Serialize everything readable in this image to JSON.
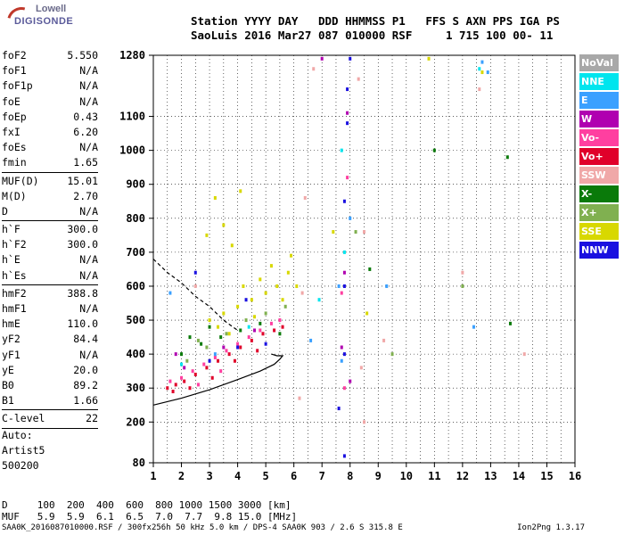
{
  "logo": {
    "top": "Lowell",
    "bottom": "DIGISONDE"
  },
  "header": {
    "line1": "Station YYYY DAY   DDD HHMMSS P1   FFS S AXN PPS IGA PS",
    "line2": "SaoLuis 2016 Mar27 087 010000 RSF     1 715 100 00- 11"
  },
  "params": [
    {
      "k": "foF2",
      "v": "5.550"
    },
    {
      "k": "foF1",
      "v": "N/A"
    },
    {
      "k": "foF1p",
      "v": "N/A"
    },
    {
      "k": "foE",
      "v": "N/A"
    },
    {
      "k": "foEp",
      "v": "0.43"
    },
    {
      "k": "fxI",
      "v": "6.20"
    },
    {
      "k": "foEs",
      "v": "N/A"
    },
    {
      "k": "fmin",
      "v": "1.65"
    },
    {
      "sep": true
    },
    {
      "k": "MUF(D)",
      "v": "15.01"
    },
    {
      "k": "M(D)",
      "v": "2.70"
    },
    {
      "k": "D",
      "v": "N/A"
    },
    {
      "sep": true
    },
    {
      "k": "h`F",
      "v": "300.0"
    },
    {
      "k": "h`F2",
      "v": "300.0"
    },
    {
      "k": "h`E",
      "v": "N/A"
    },
    {
      "k": "h`Es",
      "v": "N/A"
    },
    {
      "sep": true
    },
    {
      "k": "hmF2",
      "v": "388.8"
    },
    {
      "k": "hmF1",
      "v": "N/A"
    },
    {
      "k": "hmE",
      "v": "110.0"
    },
    {
      "k": "yF2",
      "v": "84.4"
    },
    {
      "k": "yF1",
      "v": "N/A"
    },
    {
      "k": "yE",
      "v": "20.0"
    },
    {
      "k": "B0",
      "v": "89.2"
    },
    {
      "k": "B1",
      "v": "1.66"
    },
    {
      "sep": true
    },
    {
      "k": "C-level",
      "v": "22"
    },
    {
      "sep": true
    }
  ],
  "auto": [
    "Auto:",
    "Artist5",
    "500200"
  ],
  "legend": [
    {
      "label": "NoVal",
      "color": "#a8a8a8"
    },
    {
      "label": "NNE",
      "color": "#00e5ee"
    },
    {
      "label": "E",
      "color": "#3aa0ff"
    },
    {
      "label": "W",
      "color": "#b000b0"
    },
    {
      "label": "Vo-",
      "color": "#ff3fa0"
    },
    {
      "label": "Vo+",
      "color": "#e0002a"
    },
    {
      "label": "SSW",
      "color": "#f0a8a8"
    },
    {
      "label": "X-",
      "color": "#0a7a0a"
    },
    {
      "label": "X+",
      "color": "#80b050"
    },
    {
      "label": "SSE",
      "color": "#d8d800"
    },
    {
      "label": "NNW",
      "color": "#1a10e0"
    }
  ],
  "dmuf": {
    "line1": "D     100  200  400  600  800 1000 1500 3000 [km]",
    "line2": "MUF   5.9  5.9  6.1  6.5  7.0  7.7  9.8 15.0 [MHz]"
  },
  "footer": "SAA0K_2016087010000.RSF / 300fx256h 50 kHz 5.0 km / DPS-4 SAA0K 903 / 2.6 S 315.8 E",
  "footer_right": "Ion2Png 1.3.17",
  "chart_data": {
    "type": "scatter",
    "title": "",
    "xlabel": "",
    "ylabel": "",
    "xlim": [
      1,
      16
    ],
    "ylim": [
      80,
      1280
    ],
    "xticks": [
      1,
      2,
      3,
      4,
      5,
      6,
      7,
      8,
      9,
      10,
      11,
      12,
      13,
      14,
      15,
      16
    ],
    "yticks": [
      80,
      200,
      300,
      400,
      500,
      600,
      700,
      800,
      900,
      1000,
      1100,
      1280
    ],
    "grid": true,
    "series": [
      {
        "color": "#e0002a",
        "points": [
          [
            1.5,
            300
          ],
          [
            1.8,
            310
          ],
          [
            2.1,
            320
          ],
          [
            2.5,
            340
          ],
          [
            2.9,
            360
          ],
          [
            3.3,
            380
          ],
          [
            3.7,
            400
          ],
          [
            4.1,
            420
          ],
          [
            4.5,
            440
          ],
          [
            4.9,
            460
          ],
          [
            5.3,
            470
          ],
          [
            5.6,
            480
          ],
          [
            1.7,
            290
          ],
          [
            2.3,
            300
          ],
          [
            3.1,
            330
          ],
          [
            3.9,
            380
          ],
          [
            4.7,
            410
          ]
        ]
      },
      {
        "color": "#ff3fa0",
        "points": [
          [
            1.6,
            320
          ],
          [
            2.0,
            330
          ],
          [
            2.4,
            350
          ],
          [
            2.8,
            370
          ],
          [
            3.2,
            390
          ],
          [
            3.6,
            410
          ],
          [
            4.0,
            430
          ],
          [
            4.4,
            450
          ],
          [
            4.8,
            470
          ],
          [
            5.2,
            490
          ],
          [
            5.5,
            500
          ],
          [
            7.7,
            580
          ],
          [
            7.8,
            300
          ],
          [
            7.9,
            920
          ],
          [
            2.6,
            310
          ],
          [
            3.4,
            350
          ]
        ]
      },
      {
        "color": "#d8d800",
        "points": [
          [
            3.0,
            500
          ],
          [
            3.5,
            520
          ],
          [
            4.0,
            540
          ],
          [
            4.5,
            560
          ],
          [
            5.0,
            580
          ],
          [
            5.4,
            600
          ],
          [
            5.8,
            640
          ],
          [
            5.9,
            690
          ],
          [
            4.2,
            600
          ],
          [
            4.8,
            620
          ],
          [
            5.2,
            660
          ],
          [
            3.2,
            860
          ],
          [
            3.5,
            780
          ],
          [
            2.9,
            750
          ],
          [
            3.8,
            720
          ],
          [
            4.1,
            880
          ],
          [
            7.4,
            760
          ],
          [
            8.6,
            520
          ],
          [
            3.3,
            480
          ],
          [
            4.6,
            510
          ],
          [
            5.6,
            560
          ],
          [
            12.7,
            1230
          ],
          [
            10.8,
            1270
          ],
          [
            6.1,
            600
          ],
          [
            3.7,
            460
          ]
        ]
      },
      {
        "color": "#0a7a0a",
        "points": [
          [
            2.0,
            400
          ],
          [
            2.7,
            430
          ],
          [
            3.4,
            450
          ],
          [
            4.1,
            470
          ],
          [
            4.8,
            490
          ],
          [
            5.5,
            460
          ],
          [
            8.7,
            650
          ],
          [
            13.6,
            980
          ],
          [
            11.0,
            1000
          ],
          [
            13.7,
            490
          ],
          [
            2.3,
            450
          ],
          [
            3.0,
            480
          ]
        ]
      },
      {
        "color": "#80b050",
        "points": [
          [
            2.2,
            380
          ],
          [
            2.9,
            420
          ],
          [
            3.6,
            460
          ],
          [
            4.3,
            500
          ],
          [
            5.0,
            520
          ],
          [
            5.7,
            540
          ],
          [
            8.2,
            760
          ],
          [
            9.5,
            400
          ],
          [
            12.0,
            600
          ],
          [
            2.6,
            440
          ]
        ]
      },
      {
        "color": "#1a10e0",
        "points": [
          [
            7.8,
            100
          ],
          [
            7.8,
            400
          ],
          [
            7.8,
            600
          ],
          [
            7.8,
            850
          ],
          [
            7.9,
            1080
          ],
          [
            7.9,
            1180
          ],
          [
            8.0,
            1270
          ],
          [
            3.0,
            380
          ],
          [
            4.0,
            420
          ],
          [
            5.0,
            430
          ],
          [
            2.5,
            640
          ],
          [
            4.3,
            560
          ],
          [
            7.6,
            240
          ]
        ]
      },
      {
        "color": "#b000b0",
        "points": [
          [
            7.7,
            420
          ],
          [
            7.8,
            640
          ],
          [
            7.9,
            1110
          ],
          [
            8.0,
            320
          ],
          [
            2.1,
            360
          ],
          [
            3.5,
            420
          ],
          [
            4.6,
            470
          ],
          [
            1.8,
            400
          ],
          [
            7.0,
            1270
          ]
        ]
      },
      {
        "color": "#3aa0ff",
        "points": [
          [
            7.6,
            600
          ],
          [
            7.7,
            380
          ],
          [
            8.0,
            800
          ],
          [
            6.6,
            440
          ],
          [
            12.7,
            1260
          ],
          [
            12.9,
            1230
          ],
          [
            12.4,
            480
          ],
          [
            9.3,
            600
          ],
          [
            1.6,
            580
          ],
          [
            3.2,
            400
          ]
        ]
      },
      {
        "color": "#00e5ee",
        "points": [
          [
            7.7,
            1000
          ],
          [
            7.8,
            700
          ],
          [
            6.9,
            560
          ],
          [
            12.6,
            1240
          ],
          [
            2.0,
            370
          ],
          [
            4.4,
            480
          ]
        ]
      },
      {
        "color": "#f0a8a8",
        "points": [
          [
            8.5,
            200
          ],
          [
            8.4,
            360
          ],
          [
            8.3,
            1210
          ],
          [
            6.2,
            270
          ],
          [
            6.3,
            580
          ],
          [
            8.5,
            760
          ],
          [
            6.7,
            1240
          ],
          [
            9.2,
            440
          ],
          [
            12.0,
            640
          ],
          [
            2.5,
            600
          ],
          [
            14.2,
            400
          ],
          [
            12.6,
            1180
          ],
          [
            6.4,
            860
          ]
        ]
      }
    ],
    "curves": [
      {
        "name": "profile",
        "points": [
          [
            1,
            250
          ],
          [
            2,
            270
          ],
          [
            3,
            295
          ],
          [
            4,
            325
          ],
          [
            4.8,
            350
          ],
          [
            5.3,
            370
          ],
          [
            5.5,
            385
          ],
          [
            5.6,
            395
          ],
          [
            5.4,
            395
          ],
          [
            5.2,
            400
          ]
        ]
      },
      {
        "name": "dashed",
        "dashed": true,
        "points": [
          [
            1.0,
            680
          ],
          [
            1.5,
            640
          ],
          [
            2.0,
            610
          ],
          [
            2.5,
            570
          ],
          [
            3.0,
            540
          ],
          [
            3.5,
            500
          ],
          [
            4.0,
            470
          ]
        ]
      }
    ]
  }
}
